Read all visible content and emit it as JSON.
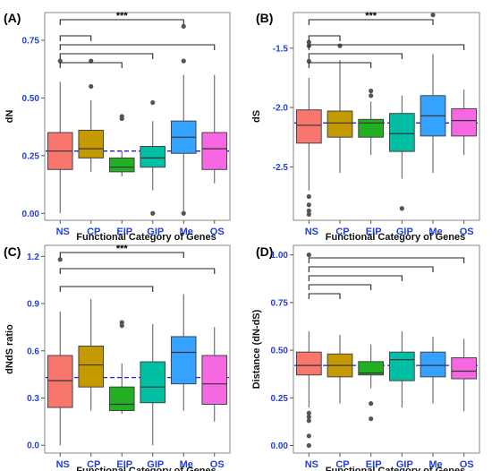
{
  "figure_colors": {
    "NS": "#f8766d",
    "CP": "#c49a00",
    "EIP": "#22b022",
    "GIP": "#00bfa5",
    "Me": "#35a2ff",
    "OS": "#f767e1",
    "reference_line": "#1a1aff",
    "axis_tick_text": "#1f3fd6"
  },
  "chart_data": [
    {
      "panel": "(A)",
      "type": "box",
      "xlabel": "Functional Category of Genes",
      "ylabel": "dN",
      "categories": [
        "NS",
        "CP",
        "EIP",
        "GIP",
        "Me",
        "OS"
      ],
      "ylim": [
        -0.03,
        0.87
      ],
      "yticks": [
        0.0,
        0.25,
        0.5,
        0.75
      ],
      "ytick_labels": [
        "0.00",
        "0.25",
        "0.50",
        "0.75"
      ],
      "reference_line": 0.27,
      "boxes": [
        {
          "min": 0.0,
          "q1": 0.19,
          "median": 0.27,
          "q3": 0.35,
          "max": 0.57,
          "outliers": [
            0.66
          ]
        },
        {
          "min": 0.18,
          "q1": 0.24,
          "median": 0.28,
          "q3": 0.36,
          "max": 0.49,
          "outliers": [
            0.55,
            0.66
          ]
        },
        {
          "min": 0.16,
          "q1": 0.18,
          "median": 0.2,
          "q3": 0.24,
          "max": 0.27,
          "outliers": [
            0.41,
            0.42
          ]
        },
        {
          "min": 0.1,
          "q1": 0.2,
          "median": 0.24,
          "q3": 0.29,
          "max": 0.4,
          "outliers": [
            0.0,
            0.48
          ]
        },
        {
          "min": 0.0,
          "q1": 0.26,
          "median": 0.33,
          "q3": 0.4,
          "max": 0.6,
          "outliers": [
            0.0,
            0.66,
            0.81
          ]
        },
        {
          "min": 0.13,
          "q1": 0.19,
          "median": 0.28,
          "q3": 0.35,
          "max": 0.6,
          "outliers": []
        }
      ],
      "brackets": [
        {
          "from": "NS",
          "to": "Me",
          "label": "***"
        },
        {
          "from": "NS",
          "to": "CP",
          "label": ""
        },
        {
          "from": "NS",
          "to": "OS",
          "label": ""
        },
        {
          "from": "NS",
          "to": "GIP",
          "label": ""
        },
        {
          "from": "NS",
          "to": "EIP",
          "label": ""
        }
      ]
    },
    {
      "panel": "(B)",
      "type": "box",
      "xlabel": "Functional Category of Genes",
      "ylabel": "dS",
      "categories": [
        "NS",
        "CP",
        "EIP",
        "GIP",
        "Me",
        "OS"
      ],
      "ylim": [
        -2.95,
        -1.2
      ],
      "yticks": [
        -2.5,
        -2.0,
        -1.5
      ],
      "ytick_labels": [
        "-2.5",
        "-2.0",
        "-1.5"
      ],
      "reference_line": -2.13,
      "boxes": [
        {
          "min": -2.7,
          "q1": -2.3,
          "median": -2.15,
          "q3": -2.02,
          "max": -1.75,
          "outliers": [
            -2.75,
            -2.82,
            -2.87,
            -2.9,
            -1.61,
            -1.48,
            -1.45
          ]
        },
        {
          "min": -2.55,
          "q1": -2.25,
          "median": -2.13,
          "q3": -2.03,
          "max": -1.6,
          "outliers": [
            -1.48
          ]
        },
        {
          "min": -2.4,
          "q1": -2.25,
          "median": -2.13,
          "q3": -2.1,
          "max": -1.95,
          "outliers": [
            -1.9,
            -1.86
          ]
        },
        {
          "min": -2.6,
          "q1": -2.37,
          "median": -2.22,
          "q3": -2.05,
          "max": -1.9,
          "outliers": [
            -2.85
          ]
        },
        {
          "min": -2.55,
          "q1": -2.24,
          "median": -2.07,
          "q3": -1.9,
          "max": -1.55,
          "outliers": [
            -1.22
          ]
        },
        {
          "min": -2.4,
          "q1": -2.24,
          "median": -2.11,
          "q3": -2.01,
          "max": -1.85,
          "outliers": []
        }
      ],
      "brackets": [
        {
          "from": "NS",
          "to": "Me",
          "label": "***"
        },
        {
          "from": "NS",
          "to": "CP",
          "label": ""
        },
        {
          "from": "NS",
          "to": "OS",
          "label": ""
        },
        {
          "from": "NS",
          "to": "GIP",
          "label": ""
        },
        {
          "from": "NS",
          "to": "EIP",
          "label": ""
        }
      ]
    },
    {
      "panel": "(C)",
      "type": "box",
      "xlabel": "Functional Category of Genes",
      "ylabel": "dNdS ratio",
      "categories": [
        "NS",
        "CP",
        "EIP",
        "GIP",
        "Me",
        "OS"
      ],
      "ylim": [
        -0.05,
        1.27
      ],
      "yticks": [
        0.0,
        0.3,
        0.6,
        0.9,
        1.2
      ],
      "ytick_labels": [
        "0.0",
        "0.3",
        "0.6",
        "0.9",
        "1.2"
      ],
      "reference_line": 0.43,
      "boxes": [
        {
          "min": 0.0,
          "q1": 0.24,
          "median": 0.41,
          "q3": 0.57,
          "max": 0.85,
          "outliers": [
            1.18
          ]
        },
        {
          "min": 0.22,
          "q1": 0.37,
          "median": 0.51,
          "q3": 0.63,
          "max": 0.93,
          "outliers": []
        },
        {
          "min": 0.2,
          "q1": 0.22,
          "median": 0.26,
          "q3": 0.37,
          "max": 0.52,
          "outliers": [
            0.76,
            0.78
          ]
        },
        {
          "min": 0.0,
          "q1": 0.27,
          "median": 0.37,
          "q3": 0.53,
          "max": 0.77,
          "outliers": []
        },
        {
          "min": 0.22,
          "q1": 0.39,
          "median": 0.59,
          "q3": 0.69,
          "max": 0.96,
          "outliers": []
        },
        {
          "min": 0.15,
          "q1": 0.26,
          "median": 0.39,
          "q3": 0.57,
          "max": 0.75,
          "outliers": []
        }
      ],
      "brackets": [
        {
          "from": "NS",
          "to": "Me",
          "label": "***"
        },
        {
          "from": "NS",
          "to": "OS",
          "label": ""
        },
        {
          "from": "NS",
          "to": "GIP",
          "label": ""
        }
      ]
    },
    {
      "panel": "(D)",
      "type": "box",
      "xlabel": "Functional Category of Genes",
      "ylabel": "Distance (dN-dS)",
      "categories": [
        "NS",
        "CP",
        "EIP",
        "GIP",
        "Me",
        "OS"
      ],
      "ylim": [
        -0.04,
        1.05
      ],
      "yticks": [
        0.0,
        0.25,
        0.5,
        0.75,
        1.0
      ],
      "ytick_labels": [
        "0.00",
        "0.25",
        "0.50",
        "0.75",
        "1.00"
      ],
      "reference_line": 0.42,
      "boxes": [
        {
          "min": 0.2,
          "q1": 0.37,
          "median": 0.42,
          "q3": 0.49,
          "max": 0.6,
          "outliers": [
            0.0,
            0.05,
            0.13,
            0.15,
            0.17,
            1.0
          ]
        },
        {
          "min": 0.22,
          "q1": 0.36,
          "median": 0.42,
          "q3": 0.48,
          "max": 0.58,
          "outliers": []
        },
        {
          "min": 0.3,
          "q1": 0.37,
          "median": 0.38,
          "q3": 0.44,
          "max": 0.53,
          "outliers": [
            0.14,
            0.22
          ]
        },
        {
          "min": 0.2,
          "q1": 0.34,
          "median": 0.45,
          "q3": 0.49,
          "max": 0.6,
          "outliers": []
        },
        {
          "min": 0.22,
          "q1": 0.36,
          "median": 0.42,
          "q3": 0.49,
          "max": 0.57,
          "outliers": []
        },
        {
          "min": 0.18,
          "q1": 0.35,
          "median": 0.39,
          "q3": 0.46,
          "max": 0.56,
          "outliers": []
        }
      ],
      "brackets": [
        {
          "from": "NS",
          "to": "OS",
          "label": ""
        },
        {
          "from": "NS",
          "to": "Me",
          "label": ""
        },
        {
          "from": "NS",
          "to": "GIP",
          "label": ""
        },
        {
          "from": "NS",
          "to": "EIP",
          "label": ""
        },
        {
          "from": "NS",
          "to": "CP",
          "label": ""
        }
      ]
    }
  ]
}
